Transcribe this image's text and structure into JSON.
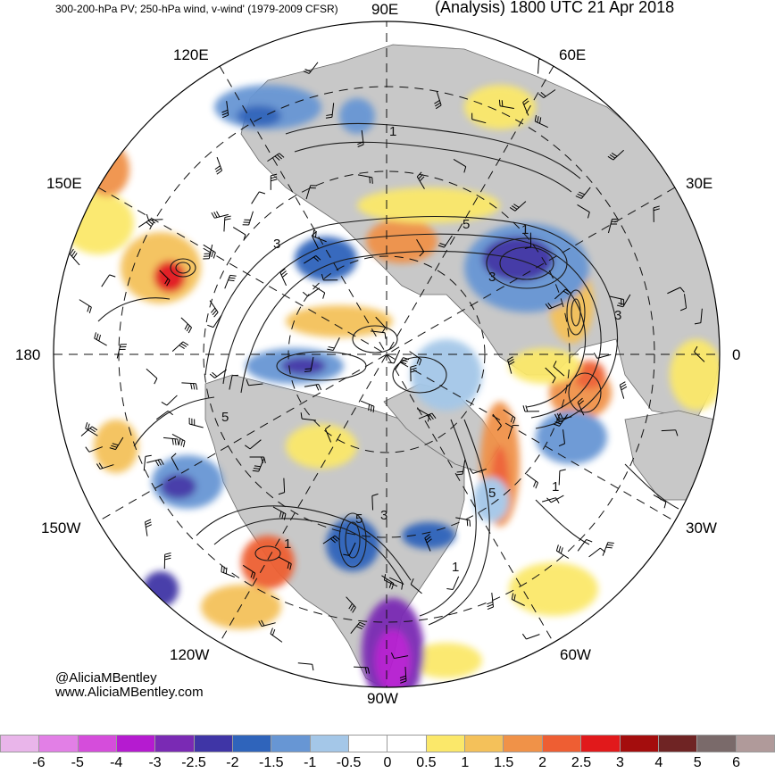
{
  "header": {
    "left_title": "300-200-hPa PV; 250-hPa wind, v-wind' (1979-2009 CFSR)",
    "right_title": "(Analysis) 1800 UTC 21 Apr 2018"
  },
  "map": {
    "projection": "north-polar-stereographic",
    "longitude_labels": {
      "e90": "90E",
      "e120": "120E",
      "e60": "60E",
      "e150": "150E",
      "e30": "30E",
      "l180": "180",
      "l0": "0",
      "w150": "150W",
      "w30": "30W",
      "w120": "120W",
      "w60": "60W",
      "w90": "90W"
    },
    "contour_labels": [
      "1",
      "3",
      "5",
      "3",
      "5",
      "1",
      "3",
      "5",
      "1",
      "5",
      "1",
      "1",
      "3"
    ],
    "land_color": "#c8c8c8",
    "ocean_color": "#ffffff"
  },
  "credit": {
    "line1": "@AliciaMBentley",
    "line2": "www.AliciaMBentley.com"
  },
  "colorbar": {
    "colors": [
      "#e9b5ea",
      "#e27fe6",
      "#d54ddb",
      "#b51bd0",
      "#7a2ab4",
      "#3f35a6",
      "#2f64bb",
      "#6796d4",
      "#a4c7e8",
      "#ffffff",
      "#ffffff",
      "#fbe86a",
      "#f4c15a",
      "#f09248",
      "#ee5e33",
      "#e1191b",
      "#a40d0d",
      "#6f2424",
      "#7a6a6a",
      "#b09a9a"
    ],
    "ticks": [
      "-6",
      "-5",
      "-4",
      "-3",
      "-2.5",
      "-2",
      "-1.5",
      "-1",
      "-0.5",
      "0",
      "0.5",
      "1",
      "1.5",
      "2",
      "2.5",
      "3",
      "4",
      "5",
      "6"
    ]
  }
}
